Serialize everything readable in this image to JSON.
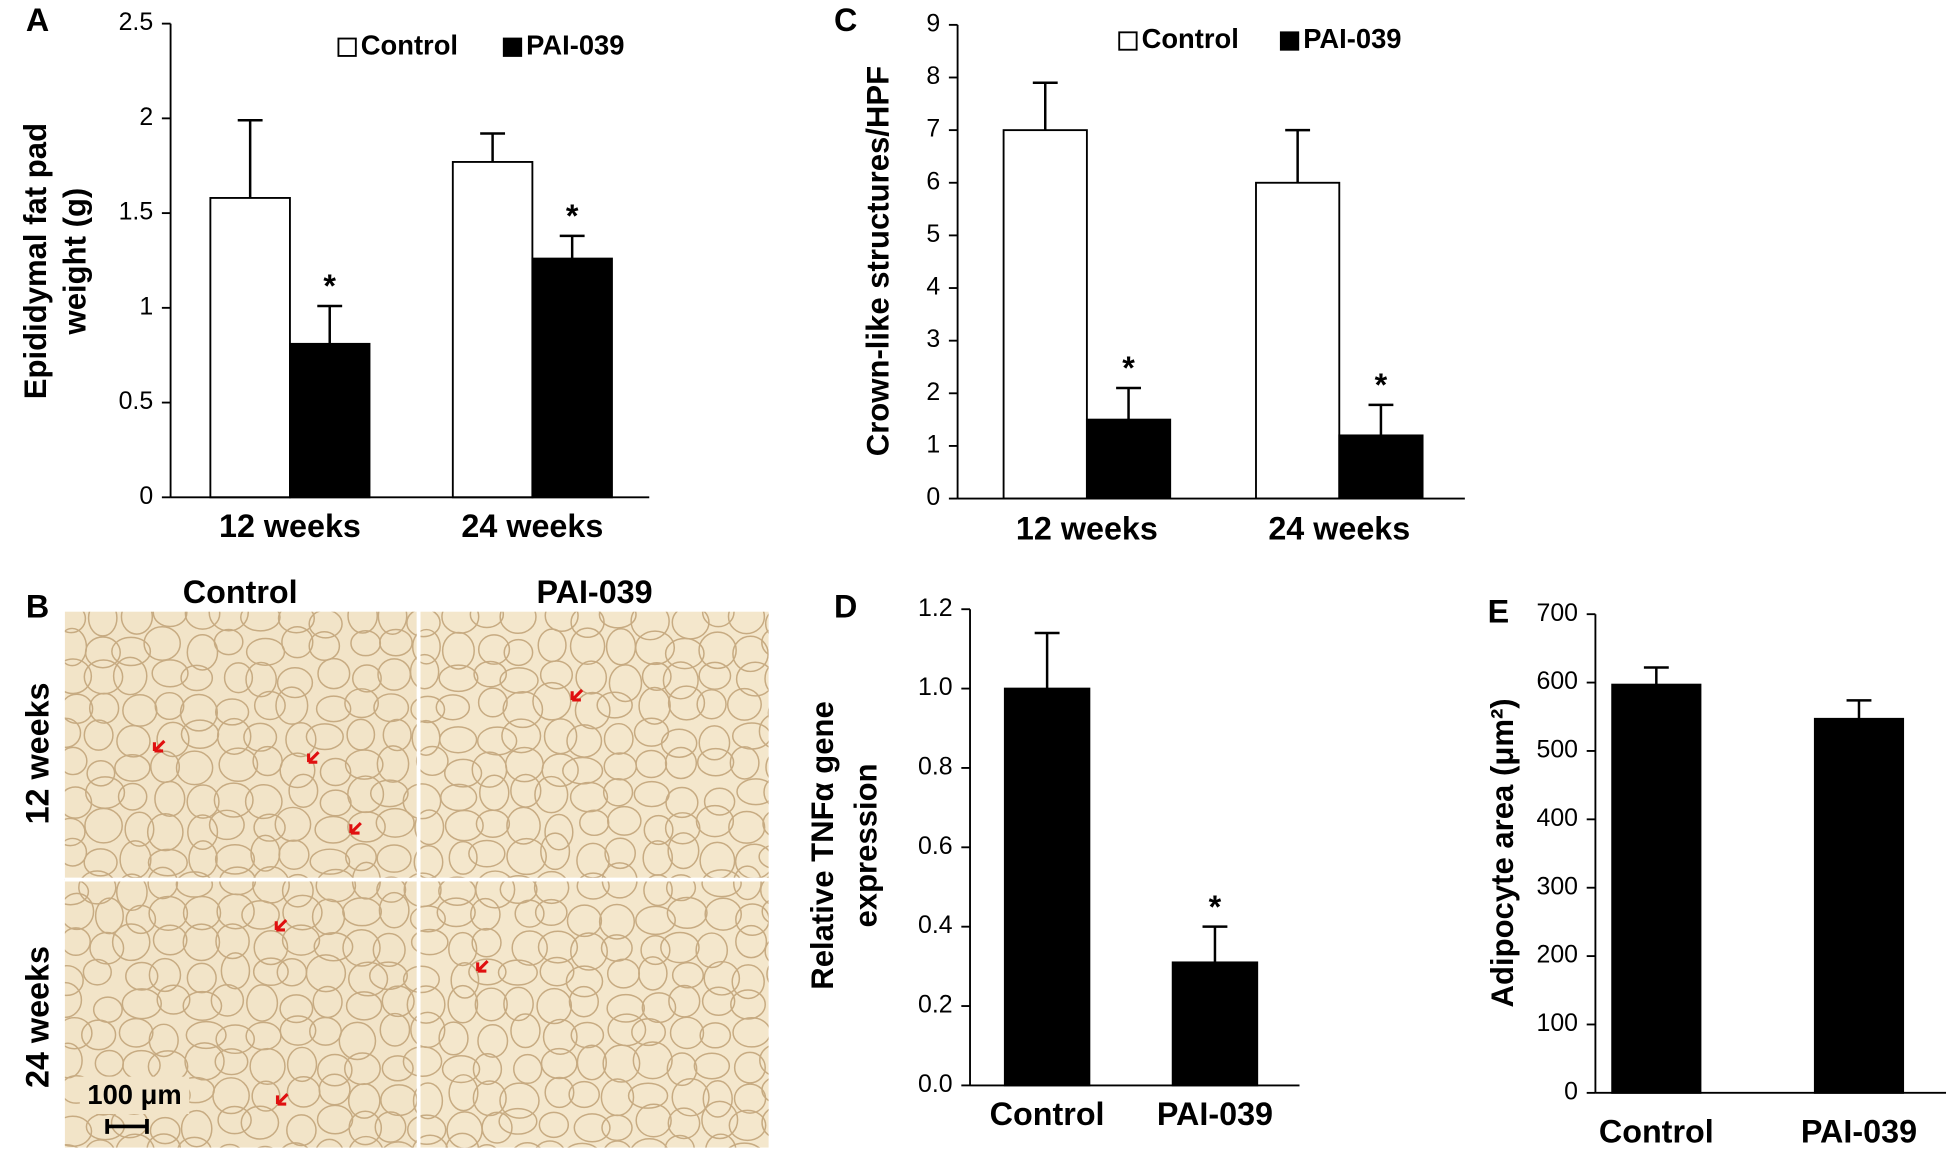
{
  "chart_data": [
    {
      "type": "bar",
      "panel_label": "A",
      "ylabel": [
        "Epididymal fat pad",
        "weight (g)"
      ],
      "categories": [
        "12 weeks",
        "24 weeks"
      ],
      "series": [
        {
          "name": "Control",
          "color": "#ffffff",
          "values": [
            1.58,
            1.77
          ],
          "errors": [
            0.41,
            0.15
          ]
        },
        {
          "name": "PAI-039",
          "color": "#000000",
          "values": [
            0.81,
            1.26
          ],
          "errors": [
            0.2,
            0.12
          ],
          "annotations": [
            "*",
            "*"
          ]
        }
      ],
      "ylim": [
        0,
        2.5
      ],
      "yticks": [
        0,
        0.5,
        1,
        1.5,
        2,
        2.5
      ],
      "legend": "top"
    },
    {
      "type": "bar",
      "panel_label": "C",
      "ylabel": [
        "Crown-like structures/HPF"
      ],
      "categories": [
        "12 weeks",
        "24 weeks"
      ],
      "series": [
        {
          "name": "Control",
          "color": "#ffffff",
          "values": [
            7,
            6
          ],
          "errors": [
            0.9,
            1.0
          ]
        },
        {
          "name": "PAI-039",
          "color": "#000000",
          "values": [
            1.5,
            1.2
          ],
          "errors": [
            0.6,
            0.58
          ],
          "annotations": [
            "*",
            "*"
          ]
        }
      ],
      "ylim": [
        0,
        9
      ],
      "yticks": [
        0,
        1,
        2,
        3,
        4,
        5,
        6,
        7,
        8,
        9
      ],
      "legend": "top"
    },
    {
      "type": "bar",
      "panel_label": "D",
      "ylabel": [
        "Relative TNFα gene",
        "expression"
      ],
      "categories": [
        "Control",
        "PAI-039"
      ],
      "color": "#000000",
      "values": [
        1.0,
        0.31
      ],
      "errors": [
        0.14,
        0.09
      ],
      "annotations": [
        null,
        "*"
      ],
      "ylim": [
        0,
        1.2
      ],
      "yticks": [
        {
          "value": 0,
          "label": "0.0"
        },
        0.2,
        0.4,
        0.6,
        0.8,
        {
          "value": 1,
          "label": "1.0"
        },
        1.2
      ]
    },
    {
      "type": "bar",
      "panel_label": "E",
      "ylabel": [
        "Adipocyte area (μm²)"
      ],
      "categories": [
        "Control",
        "PAI-039"
      ],
      "color": "#000000",
      "values": [
        597,
        547
      ],
      "errors": [
        25,
        27
      ],
      "ylim": [
        0,
        700
      ],
      "yticks": [
        0,
        100,
        200,
        300,
        400,
        500,
        600,
        700
      ]
    }
  ],
  "micrograph_panel": {
    "panel_label": "B",
    "columns": [
      "Control",
      "PAI-039"
    ],
    "rows": [
      "12 weeks",
      "24 weeks"
    ],
    "scale_bar": "100 μm"
  }
}
